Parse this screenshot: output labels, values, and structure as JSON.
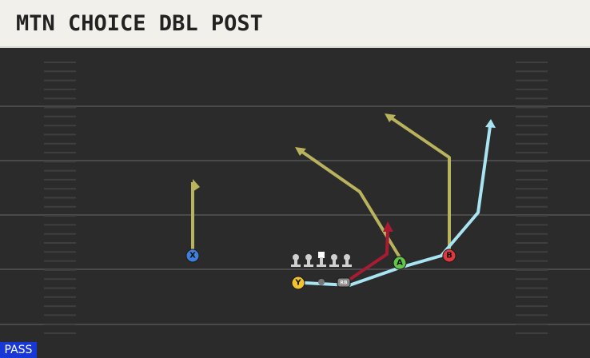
{
  "header": {
    "title": "MTN CHOICE DBL POST"
  },
  "players": [
    {
      "label": "X"
    },
    {
      "label": "A"
    },
    {
      "label": "B"
    },
    {
      "label": "Y"
    },
    {
      "label": "RB"
    }
  ],
  "footer": {
    "tag": "PASS"
  }
}
